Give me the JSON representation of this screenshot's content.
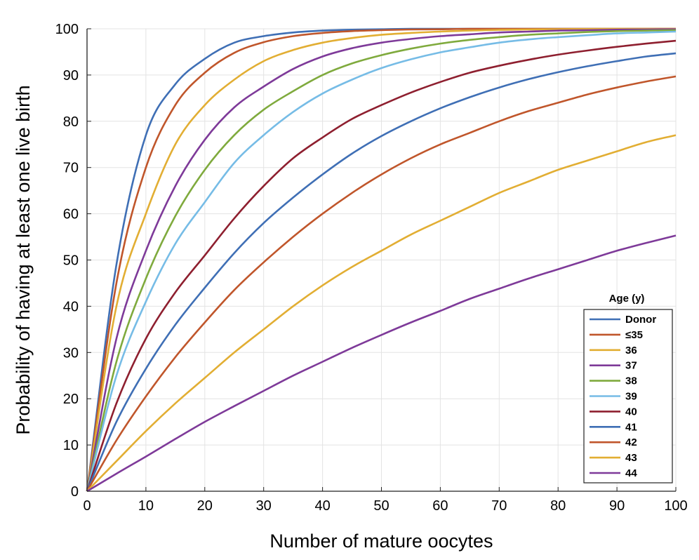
{
  "chart_data": {
    "type": "line",
    "title": "",
    "xlabel": "Number of mature oocytes",
    "ylabel": "Probability of having at least one live birth",
    "xlim": [
      0,
      100
    ],
    "ylim": [
      0,
      100
    ],
    "x_ticks": [
      0,
      10,
      20,
      30,
      40,
      50,
      60,
      70,
      80,
      90,
      100
    ],
    "y_ticks": [
      0,
      10,
      20,
      30,
      40,
      50,
      60,
      70,
      80,
      90,
      100
    ],
    "grid": true,
    "legend_title": "Age (y)",
    "legend_position": "bottom-right",
    "x": [
      0,
      5,
      10,
      15,
      20,
      25,
      30,
      35,
      40,
      45,
      50,
      55,
      60,
      65,
      70,
      75,
      80,
      85,
      90,
      95,
      100
    ],
    "series": [
      {
        "name": "Donor",
        "color": "#3f6fb5",
        "values": [
          0,
          49,
          77,
          88,
          93.5,
          97,
          98.4,
          99.2,
          99.6,
          99.8,
          99.9,
          100,
          100,
          100,
          100,
          100,
          100,
          100,
          100,
          100,
          100
        ]
      },
      {
        "name": "≤35",
        "color": "#c0562b",
        "values": [
          0,
          45,
          70,
          83.5,
          90.5,
          94.8,
          97.1,
          98.4,
          99.1,
          99.5,
          99.7,
          99.85,
          99.9,
          100,
          100,
          100,
          100,
          100,
          100,
          100,
          100
        ]
      },
      {
        "name": "36",
        "color": "#e2ae33",
        "values": [
          0,
          40,
          60,
          75,
          83.5,
          89,
          93,
          95.4,
          97,
          98,
          98.7,
          99.1,
          99.4,
          99.6,
          99.75,
          99.85,
          99.9,
          99.95,
          100,
          100,
          100
        ]
      },
      {
        "name": "37",
        "color": "#7e3a99",
        "values": [
          0,
          33,
          52,
          66,
          76,
          83,
          87.5,
          91.3,
          94,
          95.8,
          97,
          97.8,
          98.4,
          98.8,
          99.2,
          99.4,
          99.6,
          99.7,
          99.8,
          99.85,
          99.9
        ]
      },
      {
        "name": "38",
        "color": "#7faa3d",
        "values": [
          0,
          28,
          46,
          59.5,
          69.5,
          77,
          82.5,
          86.5,
          90,
          92.5,
          94.3,
          95.7,
          96.8,
          97.6,
          98.2,
          98.7,
          99,
          99.3,
          99.5,
          99.6,
          99.7
        ]
      },
      {
        "name": "39",
        "color": "#76bce6",
        "values": [
          0,
          25,
          41,
          53.5,
          62.5,
          71,
          77,
          82,
          86,
          89,
          91.5,
          93.4,
          94.9,
          96,
          97,
          97.7,
          98.2,
          98.6,
          99,
          99.2,
          99.4
        ]
      },
      {
        "name": "40",
        "color": "#8e1f2f",
        "values": [
          0,
          19,
          33,
          43,
          51,
          59,
          66,
          72,
          76.5,
          80.5,
          83.5,
          86.2,
          88.5,
          90.5,
          92,
          93.3,
          94.4,
          95.3,
          96.1,
          96.8,
          97.4
        ]
      },
      {
        "name": "41",
        "color": "#3f6fb5",
        "values": [
          0,
          15,
          26.5,
          36,
          44,
          51.5,
          58,
          63.5,
          68.5,
          73,
          76.8,
          80,
          82.8,
          85.2,
          87.3,
          89.1,
          90.6,
          91.9,
          93,
          94,
          94.7
        ]
      },
      {
        "name": "42",
        "color": "#c0562b",
        "values": [
          0,
          11,
          20.5,
          29,
          36.5,
          43.5,
          49.5,
          55,
          60,
          64.5,
          68.5,
          72,
          75,
          77.5,
          80,
          82.2,
          84,
          85.8,
          87.3,
          88.6,
          89.7
        ]
      },
      {
        "name": "43",
        "color": "#e2ae33",
        "values": [
          0,
          6.5,
          13,
          19,
          24.5,
          30,
          35,
          40,
          44.5,
          48.5,
          52,
          55.5,
          58.5,
          61.5,
          64.5,
          67,
          69.5,
          71.5,
          73.5,
          75.5,
          77
        ]
      },
      {
        "name": "44",
        "color": "#7e3a99",
        "values": [
          0,
          3.8,
          7.5,
          11.3,
          15,
          18.4,
          21.7,
          25,
          28,
          31,
          33.8,
          36.5,
          39,
          41.6,
          43.8,
          46,
          48,
          50,
          52,
          53.7,
          55.3
        ]
      }
    ]
  }
}
